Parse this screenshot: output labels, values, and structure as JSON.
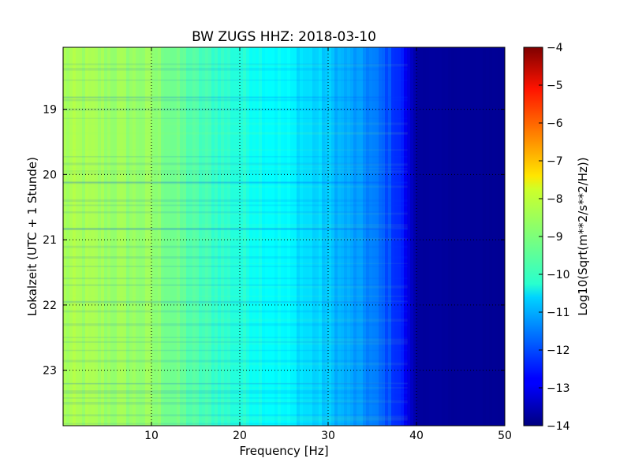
{
  "chart_data": {
    "type": "heatmap",
    "title": "BW ZUGS HHZ: 2018-03-10",
    "xlabel": "Frequency [Hz]",
    "ylabel": "Lokalzeit (UTC + 1 Stunde)",
    "xlim": [
      0,
      50
    ],
    "ylim": [
      18.05,
      23.85
    ],
    "y_inverted": true,
    "x_ticks": [
      10,
      20,
      30,
      40,
      50
    ],
    "y_ticks": [
      19,
      20,
      21,
      22,
      23
    ],
    "grid": true,
    "colormap": "jet",
    "colorbar": {
      "label": "Log10(Sqrt(m**2/s**2/Hz))",
      "range": [
        -14,
        -4
      ],
      "ticks": [
        -4,
        -5,
        -6,
        -7,
        -8,
        -9,
        -10,
        -11,
        -12,
        -13,
        -14
      ]
    },
    "spectrum_profile": {
      "frequency_hz": [
        0,
        5,
        10,
        13,
        15,
        20,
        25,
        30,
        35,
        38,
        40,
        50
      ],
      "log10_amplitude": [
        -8.6,
        -8.7,
        -8.8,
        -9.2,
        -9.5,
        -9.9,
        -10.3,
        -10.8,
        -11.5,
        -12.3,
        -13.7,
        -13.8
      ]
    }
  }
}
